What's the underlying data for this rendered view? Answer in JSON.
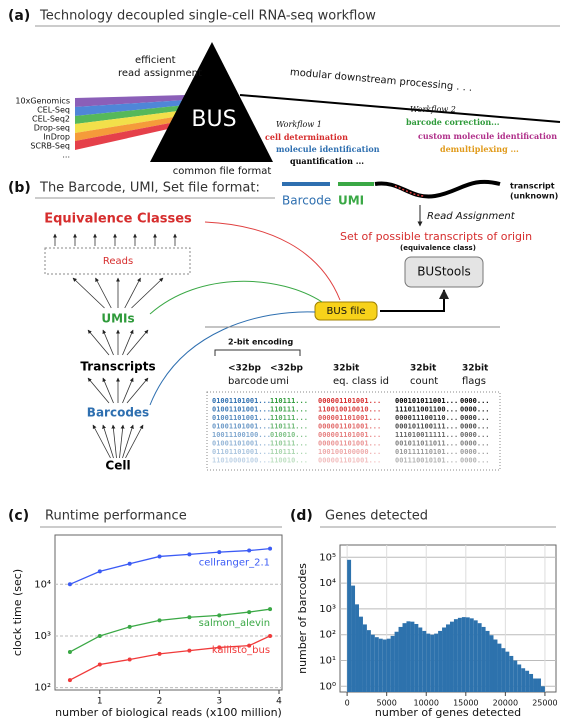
{
  "panel_a": {
    "label": "(a)",
    "title": "Technology decoupled single-cell RNA-seq workflow",
    "technologies": [
      "10xGenomics",
      "CEL-Seq",
      "CEL-Seq2",
      "Drop-seq",
      "InDrop",
      "SCRB-Seq",
      "..."
    ],
    "assignment": [
      "efficient",
      "read assignment"
    ],
    "bus": "BUS",
    "bus_caption": "common file format",
    "downstream": "modular downstream processing . . .",
    "workflow_1": {
      "title": "Workflow 1",
      "steps": [
        "cell determination",
        "molecule identification",
        "quantification ..."
      ]
    },
    "workflow_2": {
      "title": "Workflow 2",
      "steps": [
        "barcode correction...",
        "custom molecule identification",
        "demultiplexing ..."
      ]
    }
  },
  "panel_b": {
    "label": "(b)",
    "title": "The Barcode, UMI, Set file format:",
    "barcode": "Barcode",
    "umi": "UMI",
    "transcript": [
      "transcript",
      "(unknown)"
    ],
    "read_assignment": "Read Assignment",
    "set_label": "Set of possible transcripts of origin",
    "set_note": "(equivalence class)",
    "bustools": "BUStools",
    "bus_file": "BUS file",
    "hierarchy": [
      "Equivalence Classes",
      "Reads",
      "UMIs",
      "Transcripts",
      "Barcodes",
      "Cell"
    ],
    "encoding": "2-bit encoding",
    "columns": [
      {
        "size": "<32bp",
        "name": "barcode"
      },
      {
        "size": "<32bp",
        "name": "umi"
      },
      {
        "size": "32bit",
        "name": "eq. class id"
      },
      {
        "size": "32bit",
        "name": "count"
      },
      {
        "size": "32bit",
        "name": "flags"
      }
    ],
    "rows": [
      [
        "01001101001...",
        "110111...",
        "000001101001...",
        "000101011001...",
        "0000..."
      ],
      [
        "01001101001...",
        "110111...",
        "110010010010...",
        "111011001100...",
        "0000..."
      ],
      [
        "01001101001...",
        "110111...",
        "000001101001...",
        "000011100110...",
        "0000..."
      ],
      [
        "01001101001...",
        "110111...",
        "000001101001...",
        "000101100111...",
        "0000..."
      ],
      [
        "10011100100...",
        "010010...",
        "000001101001...",
        "111010011111...",
        "0000..."
      ],
      [
        "01001101001...",
        "110111...",
        "000001101001...",
        "001011011011...",
        "0000..."
      ],
      [
        "01101101001...",
        "110111...",
        "100100100000...",
        "010111110101...",
        "0000..."
      ],
      [
        "11010000100...",
        "110010...",
        "000001101001...",
        "001110010101...",
        "0000..."
      ]
    ]
  },
  "chart_data": [
    {
      "label": "(c)",
      "type": "line",
      "title": "Runtime performance",
      "x_label": "number of biological reads (x100 million)",
      "y_label": "clock time (sec)",
      "x": [
        0.5,
        1,
        1.5,
        2,
        2.5,
        3,
        3.5,
        3.85
      ],
      "series": [
        {
          "name": "cellranger_2.1",
          "color": "#3b5bf5",
          "values": [
            10000,
            17800,
            25000,
            34600,
            38000,
            42000,
            45000,
            49000
          ]
        },
        {
          "name": "salmon_alevin",
          "color": "#3aa845",
          "values": [
            490,
            1000,
            1500,
            2000,
            2300,
            2500,
            2900,
            3300
          ]
        },
        {
          "name": "kallisto_bus",
          "color": "#f03a3a",
          "values": [
            140,
            280,
            350,
            450,
            520,
            600,
            650,
            1000
          ]
        }
      ],
      "xlim": [
        0.25,
        4.05
      ],
      "ylim": [
        90,
        90000
      ],
      "xticks": [
        1,
        2,
        3,
        4
      ],
      "yticks": [
        {
          "value": 100,
          "label": "10²"
        },
        {
          "value": 1000,
          "label": "10³"
        },
        {
          "value": 10000,
          "label": "10⁴"
        }
      ],
      "log_y": true,
      "grid": true
    },
    {
      "label": "(d)",
      "type": "histogram",
      "title": "Genes detected",
      "x_label": "number of genes detected",
      "y_label": "number of barcodes",
      "color": "#2d72ad",
      "bins": [
        0,
        500,
        1000,
        1500,
        2000,
        2500,
        3000,
        3500,
        4000,
        4500,
        5000,
        5500,
        6000,
        6500,
        7000,
        7500,
        8000,
        8500,
        9000,
        9500,
        10000,
        10500,
        11000,
        11500,
        12000,
        12500,
        13000,
        13500,
        14000,
        14500,
        15000,
        15500,
        16000,
        16500,
        17000,
        17500,
        18000,
        18500,
        19000,
        19500,
        20000,
        20500,
        21000,
        21500,
        22000,
        22500,
        23000,
        23500,
        24000,
        24500,
        25000
      ],
      "counts": [
        80000,
        8000,
        1500,
        500,
        250,
        150,
        100,
        80,
        70,
        65,
        70,
        90,
        130,
        200,
        280,
        330,
        320,
        260,
        190,
        140,
        110,
        100,
        110,
        140,
        190,
        250,
        320,
        400,
        450,
        480,
        470,
        430,
        360,
        280,
        200,
        140,
        95,
        65,
        45,
        30,
        22,
        15,
        10,
        7,
        5,
        4,
        3,
        2,
        2,
        1
      ],
      "xlim": [
        -900,
        26400
      ],
      "ylim": [
        0.6,
        300000
      ],
      "xticks": [
        0,
        5000,
        10000,
        15000,
        20000,
        25000
      ],
      "yticks": [
        {
          "value": 1,
          "label": "10⁰"
        },
        {
          "value": 10,
          "label": "10¹"
        },
        {
          "value": 100,
          "label": "10²"
        },
        {
          "value": 1000,
          "label": "10³"
        },
        {
          "value": 10000,
          "label": "10⁴"
        },
        {
          "value": 100000,
          "label": "10⁵"
        }
      ],
      "log_y": true,
      "grid": true
    }
  ]
}
